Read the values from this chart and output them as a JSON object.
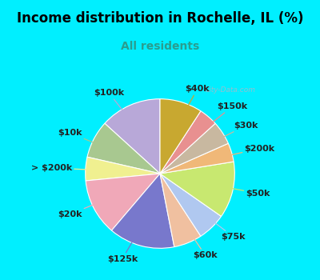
{
  "title": "Income distribution in Rochelle, IL (%)",
  "subtitle": "All residents",
  "title_color": "#000000",
  "subtitle_color": "#2a9d8f",
  "background_outer": "#00efff",
  "background_inner_top": "#e8f5f0",
  "background_inner_bottom": "#d0ede0",
  "labels": [
    "$100k",
    "$10k",
    "> $200k",
    "$20k",
    "$125k",
    "$60k",
    "$75k",
    "$50k",
    "$200k",
    "$30k",
    "$150k",
    "$40k"
  ],
  "values": [
    13,
    8,
    5,
    12,
    14,
    6,
    6,
    12,
    4,
    5,
    4,
    9
  ],
  "colors": [
    "#b8a8d8",
    "#a8c890",
    "#f0f090",
    "#f0a8b8",
    "#7878cc",
    "#f0c0a0",
    "#b0c8f0",
    "#c8e870",
    "#f0b878",
    "#c8b8a0",
    "#e89090",
    "#c8a830"
  ],
  "label_fontsize": 8,
  "startangle": 90,
  "title_fontsize": 12,
  "subtitle_fontsize": 10
}
